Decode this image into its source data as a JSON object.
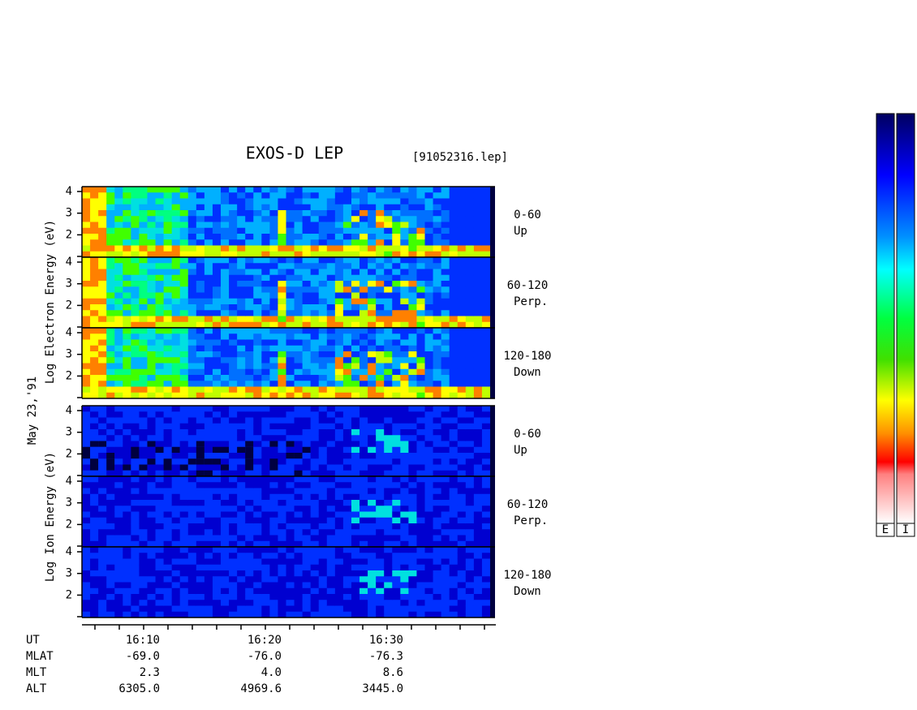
{
  "title": "EXOS-D LEP",
  "file": "[91052316.lep]",
  "electron_axis_label": "Log Electron Energy (eV)",
  "ion_axis_label": "Log Ion Energy (eV)",
  "date": "May 23,'91",
  "energy_ticks": [
    4,
    3,
    2
  ],
  "panels": [
    {
      "angle": "0-60",
      "direction": "Up"
    },
    {
      "angle": "60-120",
      "direction": "Perp."
    },
    {
      "angle": "120-180",
      "direction": "Down"
    },
    {
      "angle": "0-60",
      "direction": "Up"
    },
    {
      "angle": "60-120",
      "direction": "Perp."
    },
    {
      "angle": "120-180",
      "direction": "Down"
    }
  ],
  "ephemeris": {
    "rows": [
      {
        "name": "UT",
        "values": [
          "16:10",
          "16:20",
          "16:30"
        ]
      },
      {
        "name": "MLAT",
        "values": [
          "-69.0",
          "-76.0",
          "-76.3"
        ]
      },
      {
        "name": "MLT",
        "values": [
          "2.3",
          "4.0",
          "8.6"
        ]
      },
      {
        "name": "ALT",
        "values": [
          "6305.0",
          "4969.6",
          "3445.0"
        ]
      }
    ]
  },
  "colorbar_labels": [
    "E",
    "I"
  ]
}
